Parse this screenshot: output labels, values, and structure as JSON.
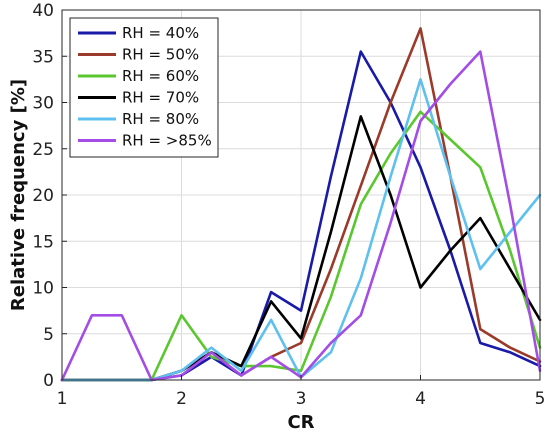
{
  "chart_data": {
    "type": "line",
    "xlabel": "CR",
    "ylabel": "Relative frequency [%]",
    "xlim": [
      1,
      5
    ],
    "ylim": [
      0,
      40
    ],
    "x_ticks": [
      1,
      2,
      3,
      4,
      5
    ],
    "y_ticks": [
      0,
      5,
      10,
      15,
      20,
      25,
      30,
      35,
      40
    ],
    "grid": true,
    "legend_position": "top-left",
    "x": [
      1.0,
      1.25,
      1.5,
      1.75,
      2.0,
      2.25,
      2.5,
      2.75,
      3.0,
      3.25,
      3.5,
      3.75,
      4.0,
      4.25,
      4.5,
      4.75,
      5.0
    ],
    "series": [
      {
        "name": "RH = 40%",
        "color": "#1a1aa8",
        "values": [
          0,
          0,
          0,
          0,
          0.5,
          2.5,
          0.5,
          9.5,
          7.5,
          22,
          35.5,
          30,
          23,
          14,
          4,
          3,
          1.5
        ]
      },
      {
        "name": "RH = 50%",
        "color": "#9b3a2a",
        "values": [
          0,
          0,
          0,
          0,
          1.0,
          3.0,
          0.5,
          2.5,
          4.0,
          12,
          21,
          30,
          38,
          22,
          5.5,
          3.5,
          2
        ]
      },
      {
        "name": "RH = 60%",
        "color": "#5ac72e",
        "values": [
          0,
          0,
          0,
          0,
          7.0,
          2.5,
          1.5,
          1.5,
          1.0,
          9,
          19,
          24.5,
          29,
          26,
          23,
          14,
          3.5
        ]
      },
      {
        "name": "RH = 70%",
        "color": "#000000",
        "values": [
          0,
          0,
          0,
          0,
          1.0,
          3.0,
          1.5,
          8.5,
          4.5,
          16,
          28.5,
          20,
          10,
          14,
          17.5,
          12,
          6.5
        ]
      },
      {
        "name": "RH = 80%",
        "color": "#5ec0ee",
        "values": [
          0,
          0,
          0,
          0,
          1.0,
          3.5,
          1.0,
          6.5,
          0.3,
          3,
          11,
          22,
          32.5,
          22,
          12,
          16,
          20
        ]
      },
      {
        "name": "RH = >85%",
        "color": "#a34de6",
        "values": [
          0,
          7.0,
          7.0,
          0,
          0.5,
          3.0,
          0.5,
          2.5,
          0.3,
          4,
          7,
          17,
          28,
          32,
          35.5,
          19,
          1
        ]
      }
    ]
  }
}
